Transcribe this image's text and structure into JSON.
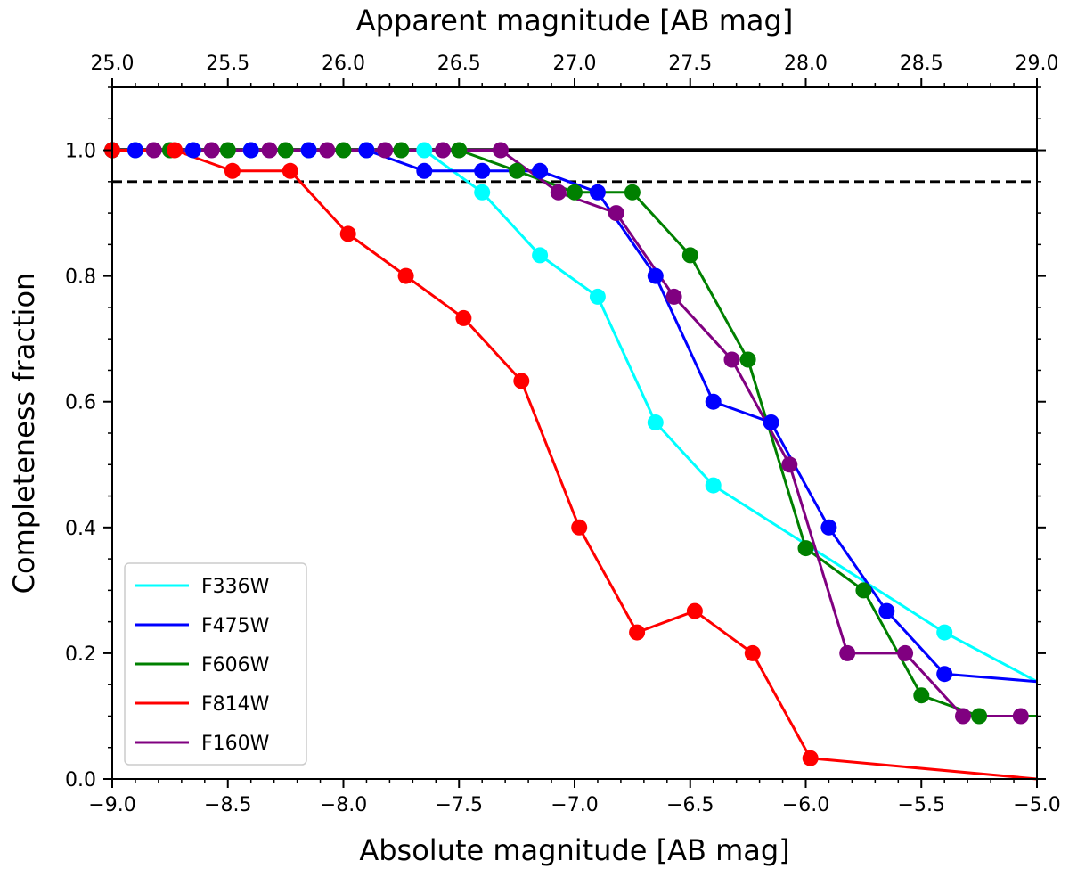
{
  "chart_data": {
    "type": "line",
    "xlabel": "Absolute magnitude [AB mag]",
    "x2label": "Apparent magnitude [AB mag]",
    "ylabel": "Completeness fraction",
    "xlim": [
      -9.0,
      -5.0
    ],
    "ylim": [
      0.0,
      1.1
    ],
    "x_ticks": [
      -9.0,
      -8.5,
      -8.0,
      -7.5,
      -7.0,
      -6.5,
      -6.0,
      -5.5,
      -5.0
    ],
    "x_tick_labels": [
      "−9.0",
      "−8.5",
      "−8.0",
      "−7.5",
      "−7.0",
      "−6.5",
      "−6.0",
      "−5.5",
      "−5.0"
    ],
    "x2_ticks": [
      25.0,
      25.5,
      26.0,
      26.5,
      27.0,
      27.5,
      28.0,
      28.5,
      29.0
    ],
    "x2_tick_labels": [
      "25.0",
      "25.5",
      "26.0",
      "26.5",
      "27.0",
      "27.5",
      "28.0",
      "28.5",
      "29.0"
    ],
    "y_ticks": [
      0.0,
      0.2,
      0.4,
      0.6,
      0.8,
      1.0
    ],
    "y_tick_labels": [
      "0.0",
      "0.2",
      "0.4",
      "0.6",
      "0.8",
      "1.0"
    ],
    "hlines": [
      {
        "y": 1.0,
        "style": "solid",
        "color": "#000000"
      },
      {
        "y": 0.95,
        "style": "dashed",
        "color": "#000000"
      }
    ],
    "legend_position": "lower-left",
    "series": [
      {
        "name": "F336W",
        "color": "#00ffff",
        "x": [
          -9.0,
          -8.9,
          -8.65,
          -8.4,
          -8.15,
          -7.9,
          -7.65,
          -7.4,
          -7.15,
          -6.9,
          -6.65,
          -6.4,
          -5.4,
          -5.0
        ],
        "y": [
          1.0,
          1.0,
          1.0,
          1.0,
          1.0,
          1.0,
          1.0,
          0.933,
          0.833,
          0.767,
          0.567,
          0.467,
          0.233,
          0.155
        ]
      },
      {
        "name": "F475W",
        "color": "#0000ff",
        "x": [
          -9.0,
          -8.9,
          -8.65,
          -8.4,
          -8.15,
          -7.9,
          -7.65,
          -7.4,
          -7.15,
          -6.9,
          -6.65,
          -6.4,
          -6.15,
          -5.9,
          -5.65,
          -5.4,
          -5.0
        ],
        "y": [
          1.0,
          1.0,
          1.0,
          1.0,
          1.0,
          1.0,
          0.967,
          0.967,
          0.967,
          0.933,
          0.8,
          0.6,
          0.567,
          0.4,
          0.267,
          0.167,
          0.155
        ]
      },
      {
        "name": "F606W",
        "color": "#008000",
        "x": [
          -9.0,
          -8.75,
          -8.5,
          -8.25,
          -8.0,
          -7.75,
          -7.5,
          -7.25,
          -7.0,
          -6.75,
          -6.5,
          -6.25,
          -6.0,
          -5.75,
          -5.5,
          -5.25,
          -5.0
        ],
        "y": [
          1.0,
          1.0,
          1.0,
          1.0,
          1.0,
          1.0,
          1.0,
          0.967,
          0.933,
          0.933,
          0.833,
          0.667,
          0.367,
          0.3,
          0.133,
          0.1,
          0.1
        ]
      },
      {
        "name": "F814W",
        "color": "#ff0000",
        "x": [
          -9.0,
          -8.73,
          -8.48,
          -8.23,
          -7.98,
          -7.73,
          -7.48,
          -7.23,
          -6.98,
          -6.73,
          -6.48,
          -6.23,
          -5.98,
          -5.0
        ],
        "y": [
          1.0,
          1.0,
          0.967,
          0.967,
          0.867,
          0.8,
          0.733,
          0.633,
          0.4,
          0.233,
          0.267,
          0.2,
          0.033,
          0.0
        ]
      },
      {
        "name": "F160W",
        "color": "#800080",
        "x": [
          -8.82,
          -8.57,
          -8.32,
          -8.07,
          -7.82,
          -7.57,
          -7.32,
          -7.07,
          -6.82,
          -6.57,
          -6.32,
          -6.07,
          -5.82,
          -5.57,
          -5.32,
          -5.07
        ],
        "y": [
          1.0,
          1.0,
          1.0,
          1.0,
          1.0,
          1.0,
          1.0,
          0.933,
          0.9,
          0.767,
          0.667,
          0.5,
          0.2,
          0.2,
          0.1,
          0.1
        ]
      }
    ]
  }
}
